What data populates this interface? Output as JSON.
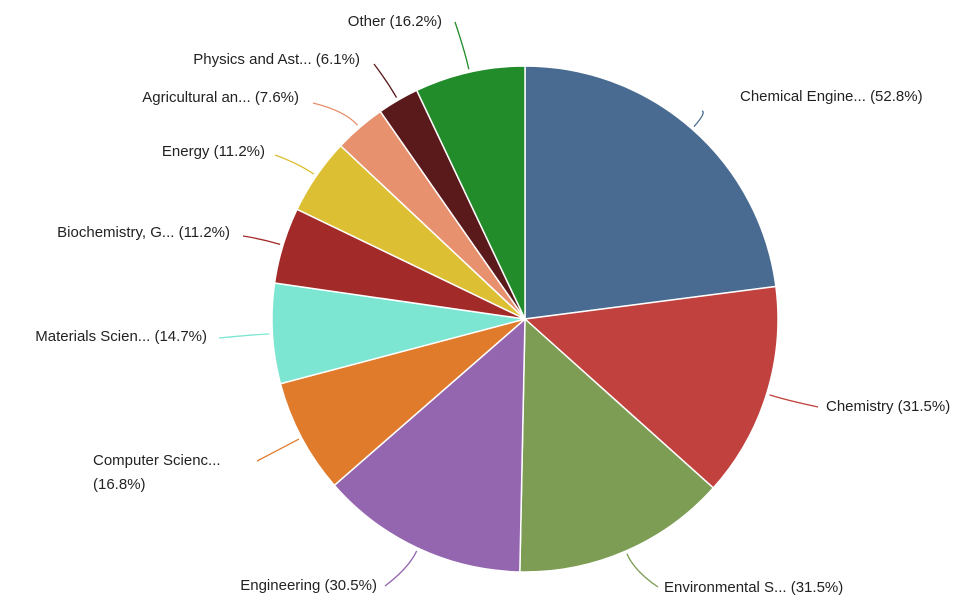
{
  "chart_data": {
    "type": "pie",
    "title": "",
    "slices": [
      {
        "label": "Chemical Engine... (52.8%)",
        "value": 52.8,
        "color": "#4a6b91"
      },
      {
        "label": "Chemistry (31.5%)",
        "value": 31.5,
        "color": "#c0413d"
      },
      {
        "label": "Environmental S... (31.5%)",
        "value": 31.5,
        "color": "#7d9d55"
      },
      {
        "label": "Engineering (30.5%)",
        "value": 30.5,
        "color": "#9466b0"
      },
      {
        "label": "Computer Scienc...",
        "label2": "(16.8%)",
        "value": 16.8,
        "color": "#e07b2c"
      },
      {
        "label": "Materials Scien... (14.7%)",
        "value": 14.7,
        "color": "#7de6d2"
      },
      {
        "label": "Biochemistry, G... (11.2%)",
        "value": 11.2,
        "color": "#a22a28"
      },
      {
        "label": "Energy (11.2%)",
        "value": 11.2,
        "color": "#dcbf33"
      },
      {
        "label": "Agricultural an... (7.6%)",
        "value": 7.6,
        "color": "#e8916e"
      },
      {
        "label": "Physics and Ast... (6.1%)",
        "value": 6.1,
        "color": "#5a1a1c"
      },
      {
        "label": "Other (16.2%)",
        "value": 16.2,
        "color": "#228b2a"
      }
    ]
  }
}
